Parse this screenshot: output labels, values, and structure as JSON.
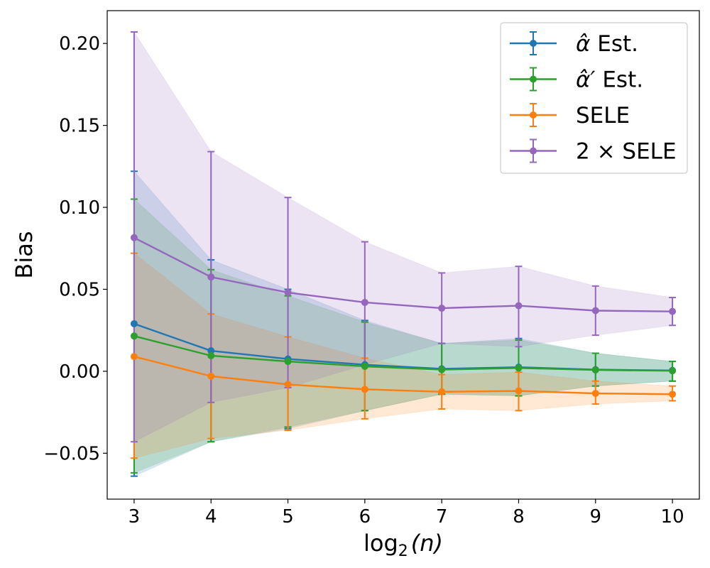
{
  "chart_data": {
    "type": "line",
    "title": "",
    "xlabel": "log₂(n)",
    "xlabel_base": "log",
    "xlabel_sub": "2",
    "xlabel_arg": "(n)",
    "ylabel": "Bias",
    "x": [
      3,
      4,
      5,
      6,
      7,
      8,
      9,
      10
    ],
    "xlim": [
      2.65,
      10.35
    ],
    "ylim": [
      -0.078,
      0.22
    ],
    "x_ticks": [
      3,
      4,
      5,
      6,
      7,
      8,
      9,
      10
    ],
    "x_tick_labels": [
      "3",
      "4",
      "5",
      "6",
      "7",
      "8",
      "9",
      "10"
    ],
    "y_ticks": [
      -0.05,
      0.0,
      0.05,
      0.1,
      0.15,
      0.2
    ],
    "y_tick_labels": [
      "−0.05",
      "0.00",
      "0.05",
      "0.10",
      "0.15",
      "0.20"
    ],
    "grid": false,
    "legend_position": "top-right",
    "series": [
      {
        "name": "α̂ Est.",
        "legend_label": {
          "symbol": "α̂",
          "rest": " Est."
        },
        "color": "#1f77b4",
        "values": [
          0.029,
          0.0125,
          0.0075,
          0.004,
          0.0015,
          0.0025,
          0.001,
          0.0005
        ],
        "lower": [
          -0.064,
          -0.043,
          -0.035,
          -0.024,
          -0.014,
          -0.015,
          -0.009,
          -0.006
        ],
        "upper": [
          0.122,
          0.068,
          0.05,
          0.031,
          0.017,
          0.02,
          0.011,
          0.006
        ]
      },
      {
        "name": "α̂′ Est.",
        "legend_label": {
          "symbol": "α̂′",
          "rest": " Est."
        },
        "color": "#2ca02c",
        "values": [
          0.0215,
          0.0095,
          0.006,
          0.003,
          0.001,
          0.002,
          0.0008,
          0.0003
        ],
        "lower": [
          -0.062,
          -0.043,
          -0.034,
          -0.024,
          -0.014,
          -0.015,
          -0.009,
          -0.006
        ],
        "upper": [
          0.105,
          0.062,
          0.046,
          0.03,
          0.017,
          0.019,
          0.011,
          0.006
        ]
      },
      {
        "name": "SELE",
        "legend_label": {
          "symbol": "",
          "rest": "SELE"
        },
        "color": "#ff7f0e",
        "values": [
          0.009,
          -0.003,
          -0.008,
          -0.011,
          -0.0125,
          -0.012,
          -0.0135,
          -0.014
        ],
        "lower": [
          -0.053,
          -0.041,
          -0.036,
          -0.029,
          -0.023,
          -0.024,
          -0.02,
          -0.018
        ],
        "upper": [
          0.072,
          0.035,
          0.021,
          0.008,
          -0.002,
          -0.0005,
          -0.006,
          -0.009
        ]
      },
      {
        "name": "2 × SELE",
        "legend_label": {
          "symbol": "",
          "rest": "2 × SELE"
        },
        "color": "#9467bd",
        "values": [
          0.0815,
          0.0575,
          0.048,
          0.042,
          0.0385,
          0.04,
          0.037,
          0.0365
        ],
        "lower": [
          -0.043,
          -0.019,
          -0.01,
          0.004,
          0.017,
          0.015,
          0.022,
          0.028
        ],
        "upper": [
          0.207,
          0.134,
          0.106,
          0.079,
          0.06,
          0.064,
          0.052,
          0.045
        ]
      }
    ]
  }
}
